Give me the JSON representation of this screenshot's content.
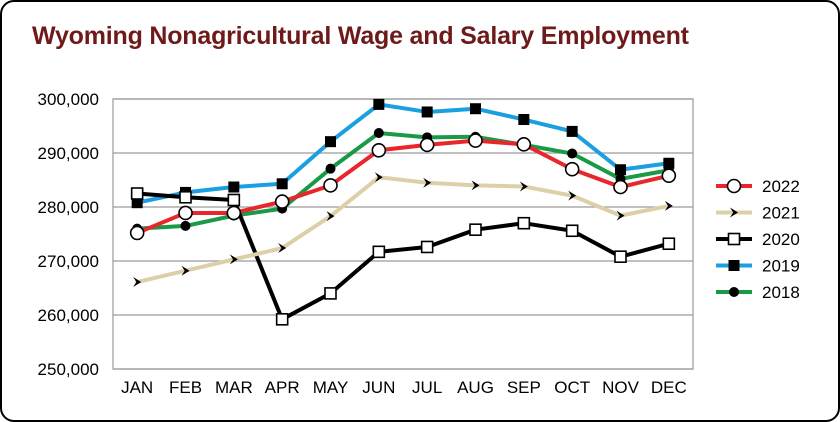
{
  "chart_data": {
    "type": "line",
    "title": "Wyoming Nonagricultural Wage and Salary Employment",
    "xlabel": "",
    "ylabel": "",
    "categories": [
      "JAN",
      "FEB",
      "MAR",
      "APR",
      "MAY",
      "JUN",
      "JUL",
      "AUG",
      "SEP",
      "OCT",
      "NOV",
      "DEC"
    ],
    "ylim": [
      250000,
      300000
    ],
    "yticks": [
      "250,000",
      "260,000",
      "270,000",
      "280,000",
      "290,000",
      "300,000"
    ],
    "grid": true,
    "legend_position": "right",
    "series": [
      {
        "name": "2022",
        "color": "#e8262c",
        "marker": "open-circle",
        "values": [
          275200,
          278900,
          278900,
          281000,
          284000,
          290500,
          291500,
          292300,
          291600,
          287000,
          283700,
          285800
        ]
      },
      {
        "name": "2021",
        "color": "#ddd0a8",
        "marker": "chevron",
        "values": [
          266100,
          268200,
          270300,
          272400,
          278300,
          285500,
          284500,
          284000,
          283800,
          282100,
          278400,
          280200
        ]
      },
      {
        "name": "2020",
        "color": "#000000",
        "marker": "open-square",
        "values": [
          282500,
          281800,
          281300,
          259200,
          264000,
          271700,
          272600,
          275800,
          277000,
          275600,
          270800,
          273200
        ]
      },
      {
        "name": "2019",
        "color": "#1aa0e0",
        "marker": "filled-square",
        "values": [
          280800,
          282700,
          283700,
          284300,
          292100,
          299000,
          297600,
          298200,
          296200,
          294000,
          286900,
          288100
        ]
      },
      {
        "name": "2018",
        "color": "#1a9a46",
        "marker": "filled-circle",
        "values": [
          276000,
          276500,
          278400,
          279700,
          287100,
          293700,
          292900,
          293000,
          291500,
          289900,
          285200,
          286800
        ]
      }
    ]
  }
}
